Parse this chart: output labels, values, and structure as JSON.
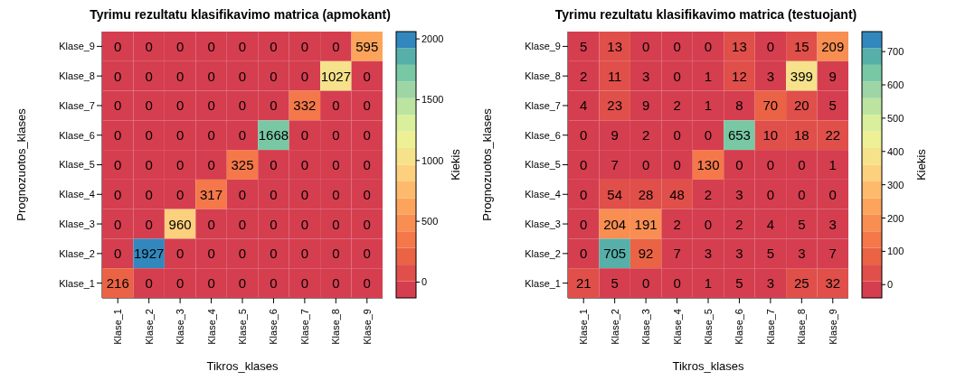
{
  "chart_data": [
    {
      "type": "heatmap",
      "title": "Tyrimu rezultatu klasifikavimo matrica (apmokant)",
      "xlabel": "Tikros_klases",
      "ylabel": "Prognozuotos_klases",
      "clabel": "Kiekis",
      "categories": [
        "Klase_1",
        "Klase_2",
        "Klase_3",
        "Klase_4",
        "Klase_5",
        "Klase_6",
        "Klase_7",
        "Klase_8",
        "Klase_9"
      ],
      "y_categories": [
        "Klase_9",
        "Klase_8",
        "Klase_7",
        "Klase_6",
        "Klase_5",
        "Klase_4",
        "Klase_3",
        "Klase_2",
        "Klase_1"
      ],
      "cells": [
        [
          0,
          0,
          0,
          0,
          0,
          0,
          0,
          0,
          595
        ],
        [
          0,
          0,
          0,
          0,
          0,
          0,
          0,
          1027,
          0
        ],
        [
          0,
          0,
          0,
          0,
          0,
          0,
          332,
          0,
          0
        ],
        [
          0,
          0,
          0,
          0,
          0,
          1668,
          0,
          0,
          0
        ],
        [
          0,
          0,
          0,
          0,
          325,
          0,
          0,
          0,
          0
        ],
        [
          0,
          0,
          0,
          317,
          0,
          0,
          0,
          0,
          0
        ],
        [
          0,
          0,
          960,
          0,
          0,
          0,
          0,
          0,
          0
        ],
        [
          0,
          1927,
          0,
          0,
          0,
          0,
          0,
          0,
          0
        ],
        [
          216,
          0,
          0,
          0,
          0,
          0,
          0,
          0,
          0
        ]
      ],
      "clim": [
        -130,
        2060
      ],
      "cticks": [
        0,
        500,
        1000,
        1500,
        2000
      ],
      "colors": [
        "#d53e4f",
        "#e04f4a",
        "#ea6345",
        "#f4784a",
        "#f88e52",
        "#fca45c",
        "#fdba6c",
        "#fdd07e",
        "#f5e28b",
        "#eef095",
        "#d9ef9b",
        "#bce4a0",
        "#9dd5a4",
        "#79c8a4",
        "#56b0a9",
        "#3288bd"
      ],
      "data_labels": true
    },
    {
      "type": "heatmap",
      "title": "Tyrimu rezultatu klasifikavimo matrica (testuojant)",
      "xlabel": "Tikros_klases",
      "ylabel": "Prognozuotos_klases",
      "clabel": "Kiekis",
      "categories": [
        "Klase_1",
        "Klase_2",
        "Klase_3",
        "Klase_4",
        "Klase_5",
        "Klase_6",
        "Klase_7",
        "Klase_8",
        "Klase_9"
      ],
      "y_categories": [
        "Klase_9",
        "Klase_8",
        "Klase_7",
        "Klase_6",
        "Klase_5",
        "Klase_4",
        "Klase_3",
        "Klase_2",
        "Klase_1"
      ],
      "cells": [
        [
          5,
          13,
          0,
          0,
          0,
          13,
          0,
          15,
          209
        ],
        [
          2,
          11,
          3,
          0,
          1,
          12,
          3,
          399,
          9
        ],
        [
          4,
          23,
          9,
          2,
          1,
          8,
          70,
          20,
          5
        ],
        [
          0,
          9,
          2,
          0,
          0,
          653,
          10,
          18,
          22
        ],
        [
          0,
          7,
          0,
          0,
          130,
          0,
          0,
          0,
          1
        ],
        [
          0,
          54,
          28,
          48,
          2,
          3,
          0,
          0,
          0
        ],
        [
          0,
          204,
          191,
          2,
          0,
          2,
          4,
          5,
          3
        ],
        [
          0,
          705,
          92,
          7,
          3,
          3,
          5,
          3,
          7
        ],
        [
          21,
          5,
          0,
          0,
          1,
          5,
          3,
          25,
          32
        ]
      ],
      "clim": [
        -40,
        760
      ],
      "cticks": [
        0,
        100,
        200,
        300,
        400,
        500,
        600,
        700
      ],
      "colors": [
        "#d53e4f",
        "#e04f4a",
        "#ea6345",
        "#f4784a",
        "#f88e52",
        "#fca45c",
        "#fdba6c",
        "#fdd07e",
        "#f5e28b",
        "#eef095",
        "#d9ef9b",
        "#bce4a0",
        "#9dd5a4",
        "#79c8a4",
        "#56b0a9",
        "#3288bd"
      ],
      "data_labels": true
    }
  ]
}
